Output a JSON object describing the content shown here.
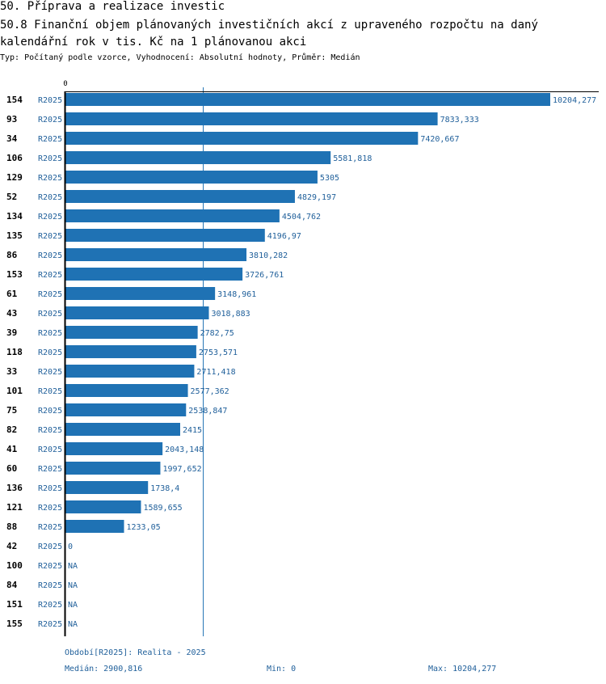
{
  "header": {
    "title": "50. Příprava a realizace investic",
    "subtitle": "50.8 Finanční objem plánovaných investičních akcí z upraveného rozpočtu na daný kalendářní rok v tis. Kč na 1 plánovanou akci",
    "type_line": "Typ: Počítaný podle vzorce, Vyhodnocení: Absolutní hodnoty, Průměr: Medián"
  },
  "chart_data": {
    "type": "bar",
    "orientation": "horizontal",
    "axis_zero_label": "0",
    "xlim": [
      0,
      10204.277
    ],
    "median": 2900.816,
    "series_label": "R2025",
    "colors": {
      "bar": "#1f72b4",
      "text": "#1f5f9a",
      "median_line": "#1f72b4"
    },
    "rows": [
      {
        "id": "154",
        "value": 10204.277,
        "label": "10204,277"
      },
      {
        "id": "93",
        "value": 7833.333,
        "label": "7833,333"
      },
      {
        "id": "34",
        "value": 7420.667,
        "label": "7420,667"
      },
      {
        "id": "106",
        "value": 5581.818,
        "label": "5581,818"
      },
      {
        "id": "129",
        "value": 5305,
        "label": "5305"
      },
      {
        "id": "52",
        "value": 4829.197,
        "label": "4829,197"
      },
      {
        "id": "134",
        "value": 4504.762,
        "label": "4504,762"
      },
      {
        "id": "135",
        "value": 4196.97,
        "label": "4196,97"
      },
      {
        "id": "86",
        "value": 3810.282,
        "label": "3810,282"
      },
      {
        "id": "153",
        "value": 3726.761,
        "label": "3726,761"
      },
      {
        "id": "61",
        "value": 3148.961,
        "label": "3148,961"
      },
      {
        "id": "43",
        "value": 3018.883,
        "label": "3018,883"
      },
      {
        "id": "39",
        "value": 2782.75,
        "label": "2782,75"
      },
      {
        "id": "118",
        "value": 2753.571,
        "label": "2753,571"
      },
      {
        "id": "33",
        "value": 2711.418,
        "label": "2711,418"
      },
      {
        "id": "101",
        "value": 2577.362,
        "label": "2577,362"
      },
      {
        "id": "75",
        "value": 2538.847,
        "label": "2538,847"
      },
      {
        "id": "82",
        "value": 2415,
        "label": "2415"
      },
      {
        "id": "41",
        "value": 2043.148,
        "label": "2043,148"
      },
      {
        "id": "60",
        "value": 1997.652,
        "label": "1997,652"
      },
      {
        "id": "136",
        "value": 1738.4,
        "label": "1738,4"
      },
      {
        "id": "121",
        "value": 1589.655,
        "label": "1589,655"
      },
      {
        "id": "88",
        "value": 1233.05,
        "label": "1233,05"
      },
      {
        "id": "42",
        "value": 0,
        "label": "0"
      },
      {
        "id": "100",
        "value": null,
        "label": "NA"
      },
      {
        "id": "84",
        "value": null,
        "label": "NA"
      },
      {
        "id": "151",
        "value": null,
        "label": "NA"
      },
      {
        "id": "155",
        "value": null,
        "label": "NA"
      }
    ]
  },
  "footer": {
    "period": "Období[R2025]: Realita - 2025",
    "median": "Medián: 2900,816",
    "min": "Min: 0",
    "max": "Max: 10204,277"
  }
}
